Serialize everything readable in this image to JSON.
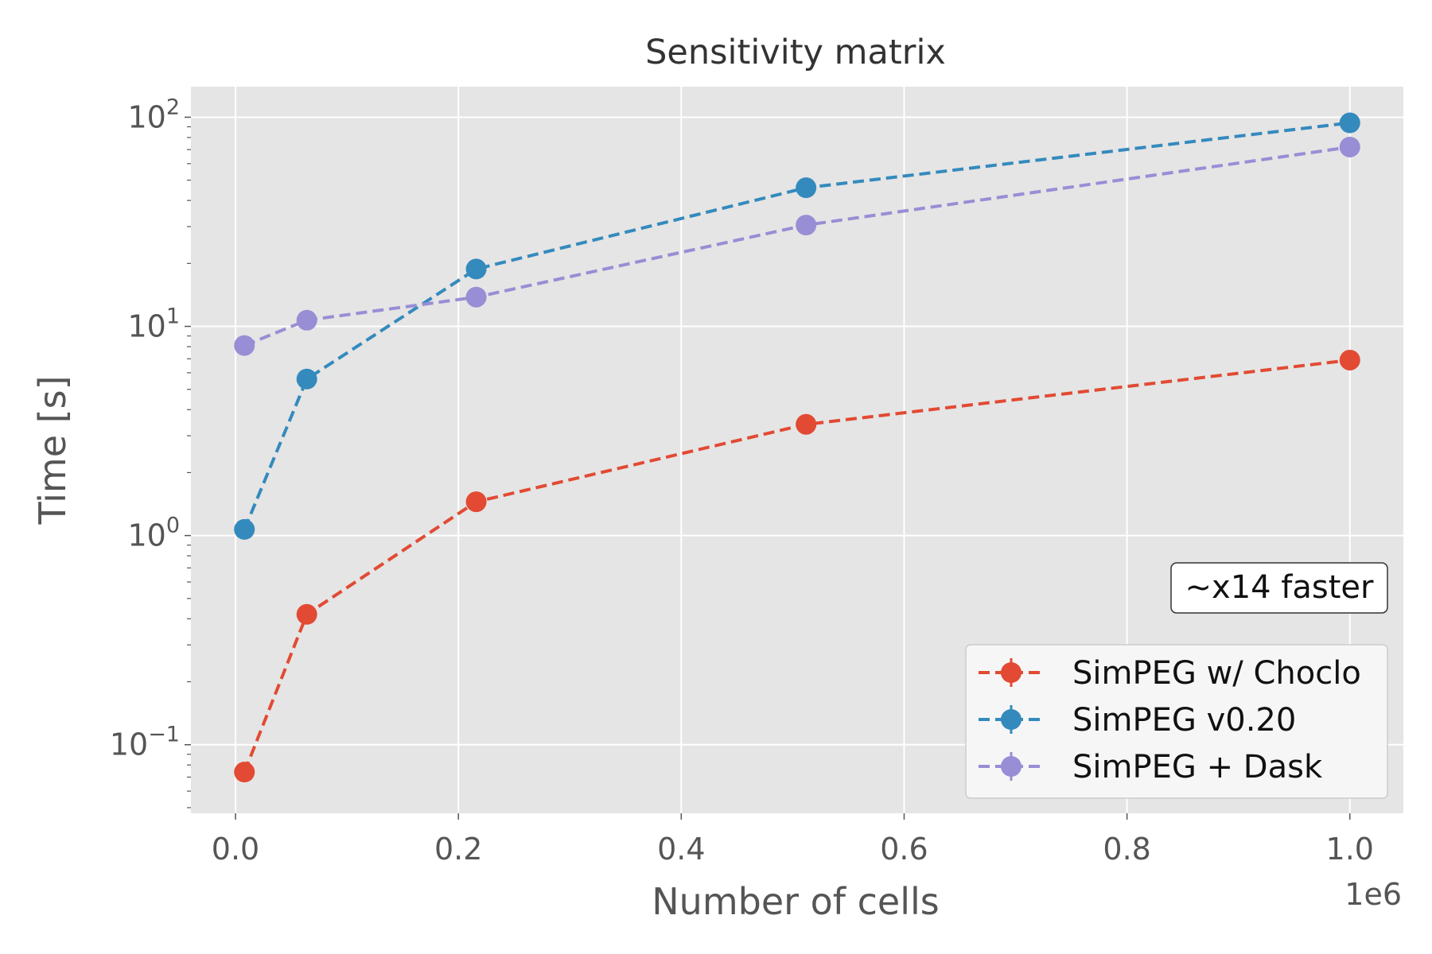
{
  "chart_data": {
    "type": "line",
    "title": "Sensitivity matrix",
    "xlabel": "Number of cells",
    "ylabel": "Time [s]",
    "x_offset_label": "1e6",
    "x_scale": "linear",
    "y_scale": "log",
    "xlim": [
      -40000,
      1048000
    ],
    "ylim": [
      0.047,
      140
    ],
    "x_ticks": [
      {
        "value": 0,
        "label": "0.0"
      },
      {
        "value": 200000,
        "label": "0.2"
      },
      {
        "value": 400000,
        "label": "0.4"
      },
      {
        "value": 600000,
        "label": "0.6"
      },
      {
        "value": 800000,
        "label": "0.8"
      },
      {
        "value": 1000000,
        "label": "1.0"
      }
    ],
    "y_ticks": [
      {
        "value": 0.1,
        "base": "10",
        "exp": "−1"
      },
      {
        "value": 1,
        "base": "10",
        "exp": "0"
      },
      {
        "value": 10,
        "base": "10",
        "exp": "1"
      },
      {
        "value": 100,
        "base": "10",
        "exp": "2"
      }
    ],
    "grid": true,
    "legend_position": "lower-right",
    "annotation": "~x14 faster",
    "x": [
      8000,
      64000,
      216000,
      512000,
      1000000
    ],
    "series": [
      {
        "name": "SimPEG w/ Choclo",
        "color": "#E24A33",
        "values": [
          0.074,
          0.42,
          1.45,
          3.4,
          6.9
        ]
      },
      {
        "name": "SimPEG v0.20",
        "color": "#348ABD",
        "values": [
          1.07,
          5.6,
          18.8,
          46,
          94
        ]
      },
      {
        "name": "SimPEG + Dask",
        "color": "#988ED5",
        "values": [
          8.1,
          10.7,
          13.8,
          30.5,
          72
        ]
      }
    ]
  }
}
